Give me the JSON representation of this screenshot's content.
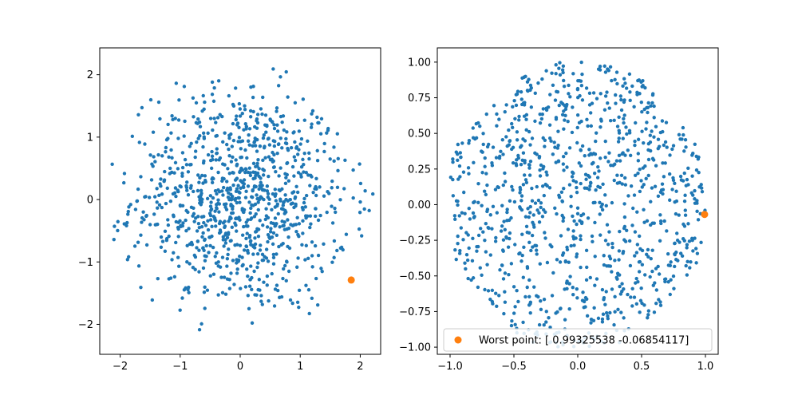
{
  "chart_data": [
    {
      "type": "scatter",
      "xlim": [
        -2.34,
        2.34
      ],
      "ylim": [
        -2.48,
        2.43
      ],
      "xticks": [
        -2,
        -1,
        0,
        1,
        2
      ],
      "yticks": [
        -2,
        -1,
        0,
        1,
        2
      ],
      "xtick_labels": [
        "−2",
        "−1",
        "0",
        "1",
        "2"
      ],
      "ytick_labels": [
        "−2",
        "−1",
        "0",
        "1",
        "2"
      ],
      "grid": false,
      "series_style": {
        "shape": "disk",
        "radius": 2.2
      },
      "highlight_point": [
        1.85,
        -1.29
      ],
      "highlight_style": {
        "radius": 4.5
      },
      "colors": {
        "points": "#1f77b4",
        "highlight": "#ff7f0e"
      }
    },
    {
      "type": "scatter",
      "xlim": [
        -1.1,
        1.1
      ],
      "ylim": [
        -1.05,
        1.1
      ],
      "xticks": [
        -1.0,
        -0.5,
        0.0,
        0.5,
        1.0
      ],
      "yticks": [
        -1.0,
        -0.75,
        -0.5,
        -0.25,
        0.0,
        0.25,
        0.5,
        0.75,
        1.0
      ],
      "xtick_labels": [
        "−1.0",
        "−0.5",
        "0.0",
        "0.5",
        "1.0"
      ],
      "ytick_labels": [
        "−1.00",
        "−0.75",
        "−0.50",
        "−0.25",
        "0.00",
        "0.25",
        "0.50",
        "0.75",
        "1.00"
      ],
      "grid": false,
      "series_style": {
        "shape": "disk",
        "radius": 2.2
      },
      "highlight_point": [
        0.99325538,
        -0.06854117
      ],
      "highlight_style": {
        "radius": 4.5
      },
      "legend": {
        "placement": "lower-center",
        "label": "Worst point: [ 0.99325538 -0.06854117]"
      },
      "colors": {
        "points": "#1f77b4",
        "highlight": "#ff7f0e"
      }
    }
  ]
}
